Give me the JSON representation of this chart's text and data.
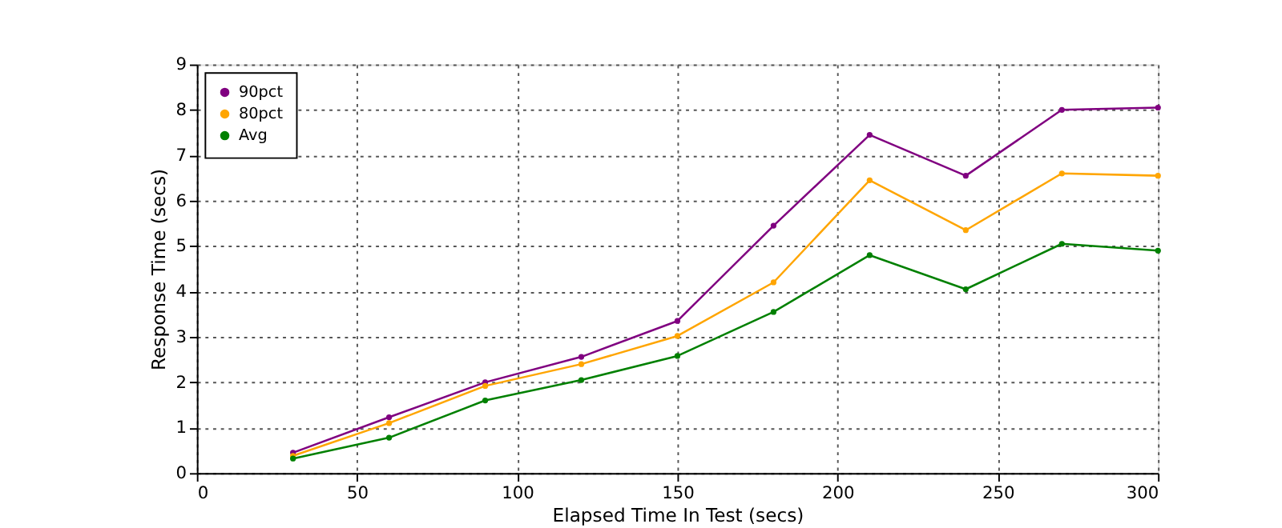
{
  "chart_data": {
    "type": "line",
    "xlabel": "Elapsed Time In Test (secs)",
    "ylabel": "Response Time (secs)",
    "x": [
      30,
      60,
      90,
      120,
      150,
      180,
      210,
      240,
      270,
      300
    ],
    "series": [
      {
        "name": "90pct",
        "color": "#800080",
        "values": [
          0.45,
          1.23,
          2.0,
          2.56,
          3.35,
          5.45,
          7.45,
          6.55,
          8.0,
          8.05
        ]
      },
      {
        "name": "80pct",
        "color": "#ffa500",
        "values": [
          0.38,
          1.1,
          1.92,
          2.4,
          3.02,
          4.2,
          6.45,
          5.35,
          6.6,
          6.55
        ]
      },
      {
        "name": "Avg",
        "color": "#008000",
        "values": [
          0.32,
          0.78,
          1.6,
          2.05,
          2.58,
          3.55,
          4.8,
          4.05,
          5.05,
          4.9
        ]
      }
    ],
    "xlim": [
      0,
      300
    ],
    "xticks": [
      0,
      50,
      100,
      150,
      200,
      250,
      300
    ],
    "ylim": [
      0,
      9
    ],
    "yticks": [
      0,
      1,
      2,
      3,
      4,
      5,
      6,
      7,
      8,
      9
    ],
    "grid": true,
    "legend": "top left",
    "marker": "circle",
    "line_style": "solid"
  }
}
